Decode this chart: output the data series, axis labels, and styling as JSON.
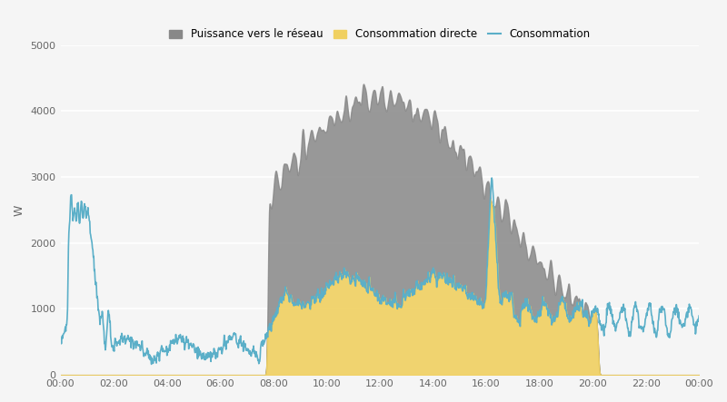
{
  "title": "",
  "ylabel": "W",
  "xlim_hours": [
    0,
    24
  ],
  "ylim": [
    0,
    5000
  ],
  "yticks": [
    0,
    1000,
    2000,
    3000,
    4000,
    5000
  ],
  "xtick_labels": [
    "00:00",
    "02:00",
    "04:00",
    "06:00",
    "08:00",
    "10:00",
    "12:00",
    "14:00",
    "16:00",
    "18:00",
    "20:00",
    "22:00",
    "00:00"
  ],
  "bg_color": "#f5f5f5",
  "grid_color": "#ffffff",
  "consommation_color": "#5bafc8",
  "puissance_color": "#888888",
  "consommation_directe_color": "#f0d060",
  "legend_labels": [
    "Puissance vers le réseau",
    "Consommation directe",
    "Consommation"
  ]
}
